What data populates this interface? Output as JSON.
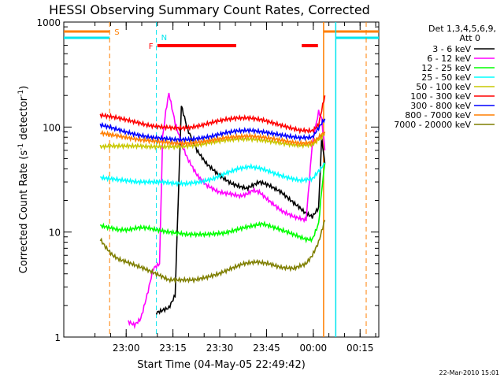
{
  "chart_data": {
    "type": "line",
    "title": "HESSI Observing Summary Count Rates, Corrected",
    "xlabel": "Start Time (04-May-05 22:49:42)",
    "ylabel": "Corrected Count Rate (s",
    "ylabel_sup1": "-1",
    "ylabel_mid": " detector",
    "ylabel_sup2": "-1",
    "ylabel_end": ")",
    "yscale": "log",
    "ylim": [
      1,
      1000
    ],
    "ytick_labels": [
      "1",
      "10",
      "100",
      "1000"
    ],
    "xlim_minutes": [
      -9.7,
      91.3
    ],
    "xticks": [
      {
        "t": 10.3,
        "label": "23:00"
      },
      {
        "t": 25.3,
        "label": "23:15"
      },
      {
        "t": 40.3,
        "label": "23:30"
      },
      {
        "t": 55.3,
        "label": "23:45"
      },
      {
        "t": 70.3,
        "label": "00:00"
      },
      {
        "t": 85.3,
        "label": "00:15"
      }
    ],
    "legend_header": "Det 1,3,4,5,6,9,",
    "legend_sub": "Att 0",
    "footer_date": "22-Mar-2010 15:01",
    "intervals": {
      "S_label": "S",
      "S": [
        [
          -9.7,
          5.0
        ],
        [
          73.6,
          91.3
        ]
      ],
      "N_label": "N",
      "N": [
        [
          -9.7,
          5.0
        ],
        [
          20.0,
          20.0
        ],
        [
          77.5,
          91.3
        ]
      ],
      "F_label": "F",
      "F": [
        [
          20.3,
          45.6
        ],
        [
          66.6,
          71.8
        ]
      ]
    },
    "colors": {
      "S": "#ff7f00",
      "N": "#00e5ee",
      "F": "#ff0000"
    },
    "series": [
      {
        "name": "3 - 6 keV",
        "color": "#000000",
        "x": [
          20,
          22,
          24,
          26,
          28,
          30,
          33,
          36,
          40,
          44,
          47,
          49,
          51,
          53,
          56,
          60,
          64,
          66,
          68,
          70,
          72,
          73,
          74
        ],
        "y": [
          1.7,
          1.8,
          1.9,
          2.5,
          160,
          95,
          60,
          45,
          35,
          29,
          27,
          26,
          28,
          30,
          28,
          24,
          19,
          17,
          15,
          14,
          17,
          80,
          45
        ]
      },
      {
        "name": "6 - 12 keV",
        "color": "#ff00ff",
        "x": [
          11,
          13,
          15,
          17,
          19,
          21,
          22,
          23,
          24,
          26,
          28,
          30,
          33,
          36,
          40,
          44,
          47,
          49,
          51,
          53,
          56,
          60,
          64,
          68,
          70,
          72,
          73,
          74
        ],
        "y": [
          1.4,
          1.3,
          1.5,
          2.5,
          4.5,
          5,
          80,
          140,
          210,
          110,
          70,
          50,
          35,
          28,
          24,
          23,
          22,
          23,
          25,
          24,
          20,
          16,
          14,
          13,
          70,
          140,
          120,
          60
        ]
      },
      {
        "name": "12 - 25 keV",
        "color": "#00ff00",
        "x": [
          2,
          5,
          8,
          11,
          14,
          17,
          20,
          24,
          30,
          36,
          42,
          48,
          54,
          58,
          62,
          66,
          68,
          70,
          72,
          73,
          74
        ],
        "y": [
          11.5,
          11,
          10.5,
          10.5,
          11,
          11,
          10.5,
          10,
          9.5,
          9.5,
          9.8,
          11,
          12,
          11,
          10,
          9,
          8.5,
          8.5,
          12,
          25,
          45
        ]
      },
      {
        "name": "25 - 50 keV",
        "color": "#00ffff",
        "x": [
          2,
          6,
          10,
          14,
          18,
          22,
          26,
          30,
          34,
          38,
          42,
          46,
          50,
          54,
          58,
          62,
          66,
          70,
          74
        ],
        "y": [
          33,
          32,
          31,
          30,
          30,
          30,
          29,
          29,
          30,
          32,
          36,
          40,
          42,
          40,
          36,
          33,
          31,
          32,
          45
        ]
      },
      {
        "name": "50 - 100 keV",
        "color": "#c8c800",
        "x": [
          2,
          6,
          10,
          14,
          18,
          22,
          26,
          30,
          34,
          38,
          42,
          46,
          50,
          54,
          58,
          62,
          66,
          70,
          74
        ],
        "y": [
          65,
          66,
          66,
          66,
          65,
          65,
          65,
          66,
          68,
          72,
          75,
          77,
          77,
          75,
          72,
          69,
          67,
          68,
          85
        ]
      },
      {
        "name": "100 - 300 keV",
        "color": "#ff0000",
        "x": [
          2,
          6,
          10,
          14,
          18,
          22,
          26,
          30,
          34,
          38,
          42,
          46,
          50,
          54,
          58,
          62,
          66,
          70,
          72,
          74
        ],
        "y": [
          130,
          125,
          118,
          110,
          103,
          100,
          98,
          98,
          103,
          111,
          118,
          122,
          122,
          117,
          108,
          100,
          93,
          92,
          105,
          200
        ]
      },
      {
        "name": "300 - 800 keV",
        "color": "#0000ff",
        "x": [
          2,
          6,
          10,
          14,
          18,
          22,
          26,
          30,
          34,
          38,
          42,
          46,
          50,
          54,
          58,
          62,
          66,
          70,
          74
        ],
        "y": [
          105,
          98,
          90,
          84,
          80,
          78,
          76,
          76,
          78,
          82,
          88,
          92,
          93,
          90,
          86,
          82,
          79,
          80,
          120
        ]
      },
      {
        "name": "800 - 7000 keV",
        "color": "#ff7f00",
        "x": [
          2,
          6,
          10,
          14,
          18,
          22,
          26,
          30,
          34,
          38,
          42,
          46,
          50,
          54,
          58,
          62,
          66,
          70,
          74
        ],
        "y": [
          88,
          84,
          80,
          76,
          74,
          72,
          70,
          70,
          72,
          75,
          79,
          81,
          82,
          80,
          77,
          73,
          70,
          71,
          90
        ]
      },
      {
        "name": "7000 - 20000 keV",
        "color": "#7f7f00",
        "x": [
          2,
          4,
          6,
          8,
          12,
          16,
          20,
          24,
          28,
          32,
          36,
          40,
          44,
          48,
          52,
          56,
          60,
          64,
          68,
          70,
          72,
          74
        ],
        "y": [
          8.5,
          7,
          6,
          5.5,
          5,
          4.5,
          4,
          3.5,
          3.5,
          3.5,
          3.7,
          4,
          4.5,
          5,
          5.2,
          5,
          4.6,
          4.5,
          5,
          6,
          8,
          13
        ]
      }
    ]
  }
}
